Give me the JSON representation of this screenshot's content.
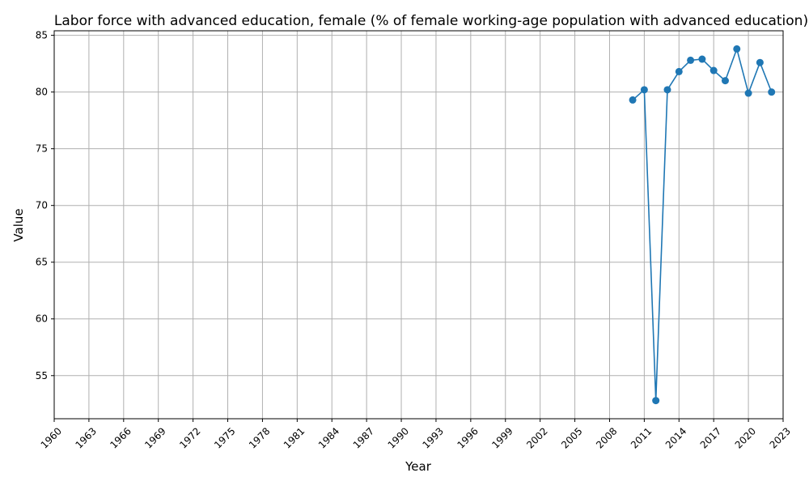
{
  "chart_data": {
    "type": "line",
    "title": "Labor force with advanced education, female (% of female working-age population with advanced education)",
    "xlabel": "Year",
    "ylabel": "Value",
    "xlim": [
      1960,
      2023
    ],
    "ylim": [
      51.2,
      85.4
    ],
    "x_ticks": [
      1960,
      1963,
      1966,
      1969,
      1972,
      1975,
      1978,
      1981,
      1984,
      1987,
      1990,
      1993,
      1996,
      1999,
      2002,
      2005,
      2008,
      2011,
      2014,
      2017,
      2020,
      2023
    ],
    "y_ticks": [
      55,
      60,
      65,
      70,
      75,
      80,
      85
    ],
    "grid": true,
    "series": [
      {
        "color": "#1f77b4",
        "marker": "circle",
        "x": [
          2010,
          2011,
          2012,
          2013,
          2014,
          2015,
          2016,
          2017,
          2018,
          2019,
          2020,
          2021,
          2022
        ],
        "y": [
          79.3,
          80.2,
          52.8,
          80.2,
          81.8,
          82.8,
          82.9,
          81.9,
          81.0,
          83.8,
          79.9,
          82.6,
          80.0
        ]
      }
    ]
  }
}
